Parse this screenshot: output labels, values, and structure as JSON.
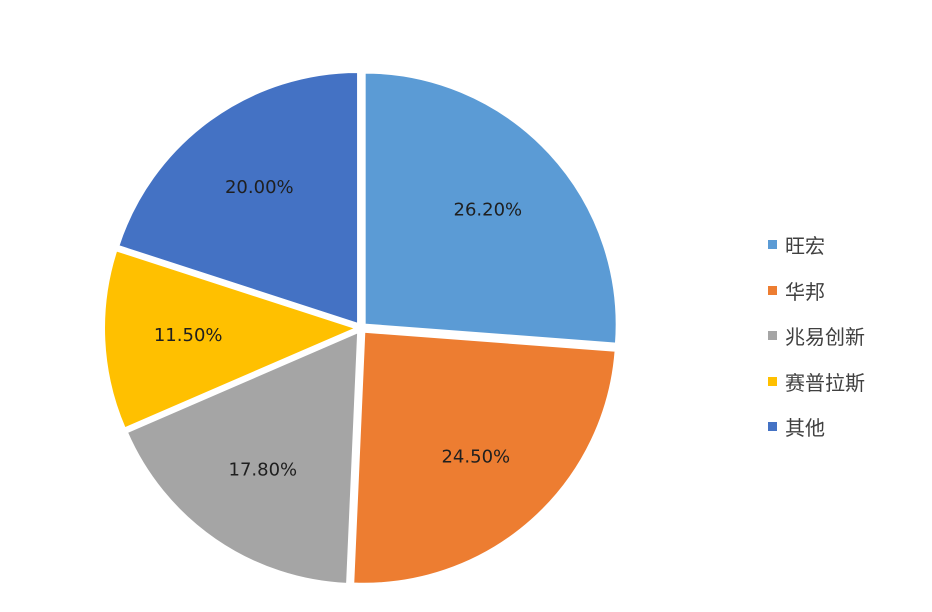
{
  "chart_data": {
    "type": "pie",
    "categories": [
      "旺宏",
      "华邦",
      "兆易创新",
      "赛普拉斯",
      "其他"
    ],
    "values": [
      26.2,
      24.5,
      17.8,
      11.5,
      20.0
    ],
    "data_labels": [
      "26.20%",
      "24.50%",
      "17.80%",
      "11.50%",
      "20.00%"
    ],
    "colors": [
      "#5b9bd5",
      "#ed7d31",
      "#a5a5a5",
      "#ffc000",
      "#4472c4"
    ],
    "start_angle": "12 o'clock, clockwise",
    "legend": {
      "position": "right",
      "items": [
        {
          "label": "旺宏",
          "color": "#5b9bd5"
        },
        {
          "label": "华邦",
          "color": "#ed7d31"
        },
        {
          "label": "兆易创新",
          "color": "#a5a5a5"
        },
        {
          "label": "赛普拉斯",
          "color": "#ffc000"
        },
        {
          "label": "其他",
          "color": "#4472c4"
        }
      ]
    }
  }
}
